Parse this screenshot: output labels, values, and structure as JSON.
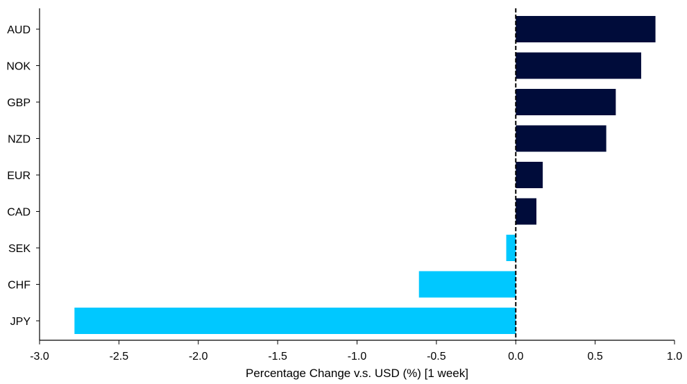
{
  "chart_data": {
    "type": "bar",
    "orientation": "horizontal",
    "title": "",
    "xlabel": "Percentage Change v.s. USD (%) [1 week]",
    "ylabel": "",
    "categories": [
      "AUD",
      "NOK",
      "GBP",
      "NZD",
      "EUR",
      "CAD",
      "SEK",
      "CHF",
      "JPY"
    ],
    "values": [
      0.88,
      0.79,
      0.63,
      0.57,
      0.17,
      0.13,
      -0.06,
      -0.61,
      -2.78
    ],
    "xlim": [
      -3.0,
      1.0
    ],
    "xticks": [
      "-3.0",
      "-2.5",
      "-2.0",
      "-1.5",
      "-1.0",
      "-0.5",
      "0.0",
      "0.5",
      "1.0"
    ],
    "grid": false,
    "legend": "none",
    "zero_line": "dashed",
    "colors": {
      "positive": "#000c3a",
      "negative": "#00c8ff",
      "axis": "#000000"
    }
  }
}
